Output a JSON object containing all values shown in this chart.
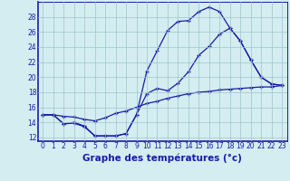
{
  "x": [
    0,
    1,
    2,
    3,
    4,
    5,
    6,
    7,
    8,
    9,
    10,
    11,
    12,
    13,
    14,
    15,
    16,
    17,
    18,
    19,
    20,
    21,
    22,
    23
  ],
  "line_max": [
    15.0,
    15.0,
    13.8,
    14.0,
    13.5,
    12.2,
    12.2,
    12.2,
    12.5,
    15.0,
    20.8,
    23.5,
    26.2,
    27.4,
    27.5,
    28.7,
    29.3,
    28.7,
    26.5,
    24.8,
    22.3,
    20.0,
    19.1,
    18.9
  ],
  "line_min": [
    15.0,
    15.0,
    13.8,
    13.9,
    13.4,
    12.2,
    12.2,
    12.2,
    12.5,
    15.0,
    17.8,
    18.5,
    18.2,
    19.2,
    20.7,
    22.9,
    24.1,
    25.7,
    26.5,
    24.8,
    22.3,
    20.0,
    19.1,
    18.9
  ],
  "line_avg": [
    15.0,
    15.0,
    14.8,
    14.7,
    14.4,
    14.2,
    14.6,
    15.2,
    15.5,
    16.0,
    16.5,
    16.8,
    17.2,
    17.5,
    17.8,
    18.0,
    18.1,
    18.3,
    18.4,
    18.5,
    18.6,
    18.7,
    18.7,
    18.9
  ],
  "xlim": [
    -0.5,
    23.5
  ],
  "ylim": [
    11.5,
    30
  ],
  "yticks": [
    12,
    14,
    16,
    18,
    20,
    22,
    24,
    26,
    28
  ],
  "xticks": [
    0,
    1,
    2,
    3,
    4,
    5,
    6,
    7,
    8,
    9,
    10,
    11,
    12,
    13,
    14,
    15,
    16,
    17,
    18,
    19,
    20,
    21,
    22,
    23
  ],
  "xlabel": "Graphe des températures (°c)",
  "line_color": "#1a1aaa",
  "bg_color": "#d4edf0",
  "grid_color": "#9ec4cc",
  "tick_fontsize": 5.5,
  "xlabel_fontsize": 7.5
}
